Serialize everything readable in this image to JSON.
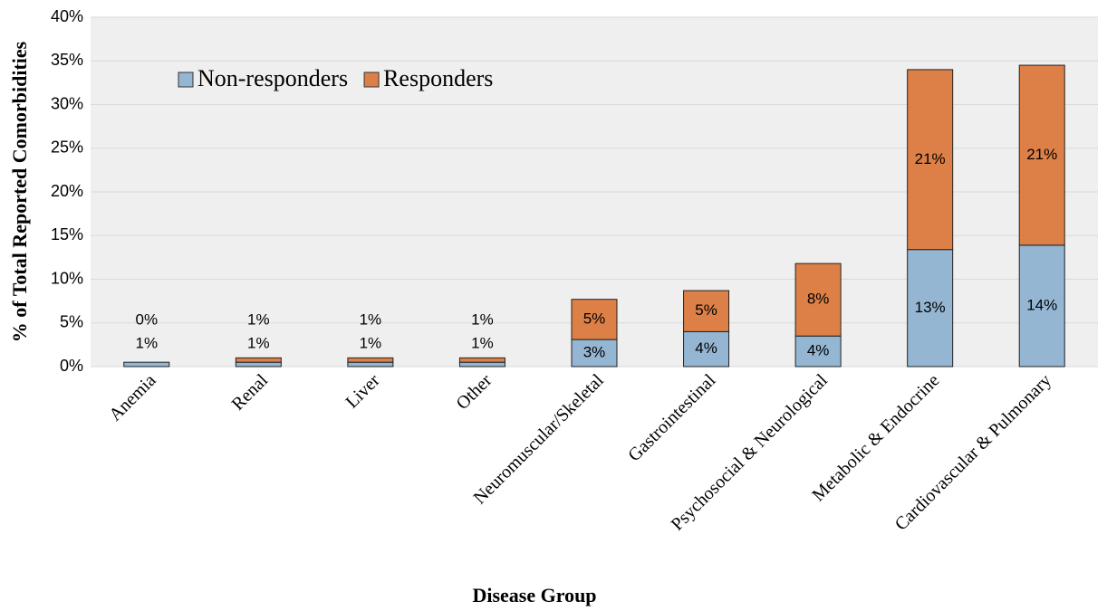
{
  "chart_data": {
    "type": "stacked_bar",
    "x_label": "Disease Group",
    "y_label": "% of Total Reported Comorbidities",
    "categories": [
      "Anemia",
      "Renal",
      "Liver",
      "Other",
      "Neuromuscular/Skeletal",
      "Gastrointestinal",
      "Psychosocial & Neurological",
      "Metabolic & Endocrine",
      "Cardiovascular & Pulmonary"
    ],
    "series": [
      {
        "name": "Non-responders",
        "color": "#94b6d2",
        "values": [
          0.5,
          0.5,
          0.5,
          0.5,
          3.1,
          4.0,
          3.5,
          13.4,
          13.9
        ],
        "value_labels": [
          "1%",
          "1%",
          "1%",
          "1%",
          "3%",
          "4%",
          "4%",
          "13%",
          "14%"
        ]
      },
      {
        "name": "Responders",
        "color": "#dd8047",
        "values": [
          0,
          0.5,
          0.5,
          0.5,
          4.6,
          4.7,
          8.3,
          20.6,
          20.6
        ],
        "value_labels": [
          "0%",
          "1%",
          "1%",
          "1%",
          "5%",
          "5%",
          "8%",
          "21%",
          "21%"
        ]
      }
    ],
    "ylim": [
      0,
      40
    ],
    "yticks": [
      {
        "value": 0,
        "label": "0%"
      },
      {
        "value": 5,
        "label": "5%"
      },
      {
        "value": 10,
        "label": "10%"
      },
      {
        "value": 15,
        "label": "15%"
      },
      {
        "value": 20,
        "label": "20%"
      },
      {
        "value": 25,
        "label": "25%"
      },
      {
        "value": 30,
        "label": "30%"
      },
      {
        "value": 35,
        "label": "35%"
      },
      {
        "value": 40,
        "label": "40%"
      }
    ],
    "grid": true,
    "legend": "upper left"
  }
}
